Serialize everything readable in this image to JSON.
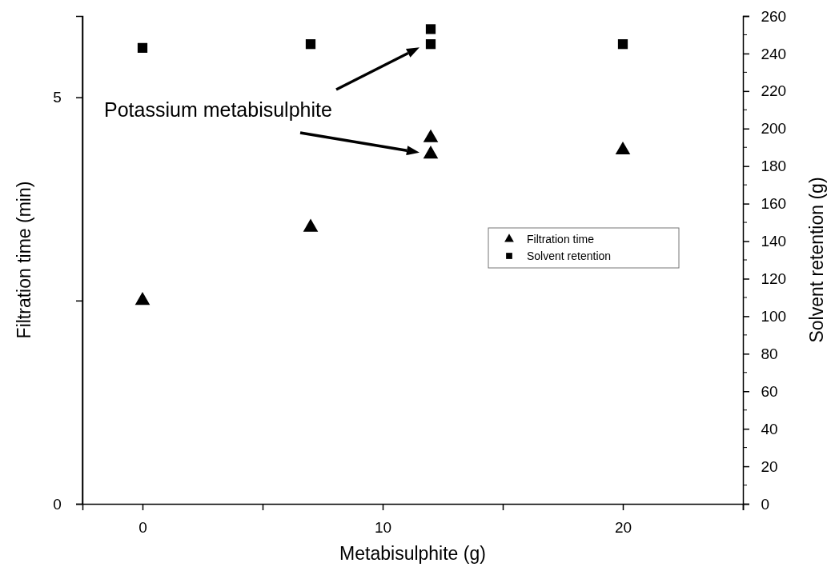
{
  "chart_data": {
    "type": "scatter",
    "xlabel": "Metabisulphite (g)",
    "ylabel": "Filtration time (min)",
    "y2label": "Solvent retention (g)",
    "xlim": [
      -2.5,
      25
    ],
    "xticks": [
      0,
      {
        "value": 5,
        "label": null
      },
      10,
      {
        "value": 15,
        "label": null
      },
      20,
      {
        "value": 25,
        "label": null
      }
    ],
    "ylim": [
      0,
      6
    ],
    "yticks": [
      0,
      {
        "value": 2.5,
        "label": null
      },
      5
    ],
    "y2lim": [
      0,
      260
    ],
    "y2ticks": [
      0,
      20,
      40,
      60,
      80,
      100,
      120,
      140,
      160,
      180,
      200,
      220,
      240,
      260
    ],
    "series": [
      {
        "name": "Filtration time",
        "color": "#000000",
        "marker": "triangle",
        "x": [
          0,
          7,
          12,
          12,
          20
        ],
        "values": [
          2.5,
          3.4,
          4.5,
          4.3,
          4.35
        ]
      },
      {
        "name": "Solvent retention",
        "color": "#000000",
        "marker": "square",
        "axis": "y2",
        "x": [
          0,
          7,
          12,
          12,
          20
        ],
        "values": [
          243,
          245,
          253,
          245,
          245
        ]
      }
    ],
    "legend": "right",
    "grid": false,
    "annotations": [
      "Potassium metabisulphite"
    ]
  }
}
